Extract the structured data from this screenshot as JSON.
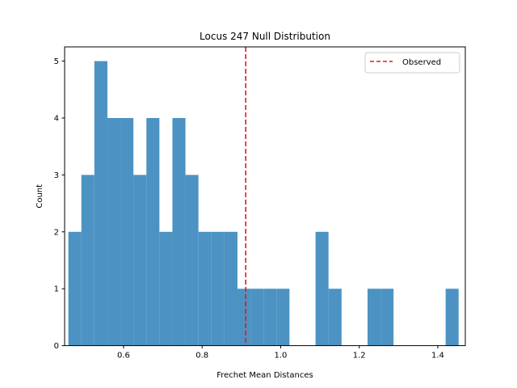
{
  "chart_data": {
    "type": "bar",
    "title": "Locus 247 Null Distribution",
    "xlabel": "Frechet Mean Distances",
    "ylabel": "Count",
    "xlim": [
      0.45,
      1.47
    ],
    "ylim": [
      0,
      5.25
    ],
    "xticks": [
      0.6,
      0.8,
      1.0,
      1.2,
      1.4
    ],
    "xtick_labels": [
      "0.6",
      "0.8",
      "1.0",
      "1.2",
      "1.4"
    ],
    "yticks": [
      0,
      1,
      2,
      3,
      4,
      5
    ],
    "ytick_labels": [
      "0",
      "1",
      "2",
      "3",
      "4",
      "5"
    ],
    "bin_edges": [
      0.4595,
      0.4926,
      0.5257,
      0.5589,
      0.592,
      0.6251,
      0.6582,
      0.6913,
      0.7244,
      0.7576,
      0.7907,
      0.8238,
      0.8569,
      0.89,
      0.9231,
      0.9563,
      0.9894,
      1.0225,
      1.0556,
      1.0887,
      1.1218,
      1.155,
      1.1881,
      1.2212,
      1.2543,
      1.2874,
      1.3205,
      1.3537,
      1.3868,
      1.4199,
      1.453
    ],
    "counts": [
      2,
      3,
      5,
      4,
      4,
      3,
      4,
      2,
      4,
      3,
      2,
      2,
      2,
      1,
      1,
      1,
      1,
      0,
      0,
      2,
      1,
      0,
      0,
      1,
      1,
      0,
      0,
      0,
      0,
      1
    ],
    "bar_color": "#4c93c3",
    "observed": {
      "value": 0.911,
      "label": "Observed",
      "color": "#e31a1c",
      "style": "dashed"
    },
    "legend_position": "upper right",
    "grid": false
  }
}
